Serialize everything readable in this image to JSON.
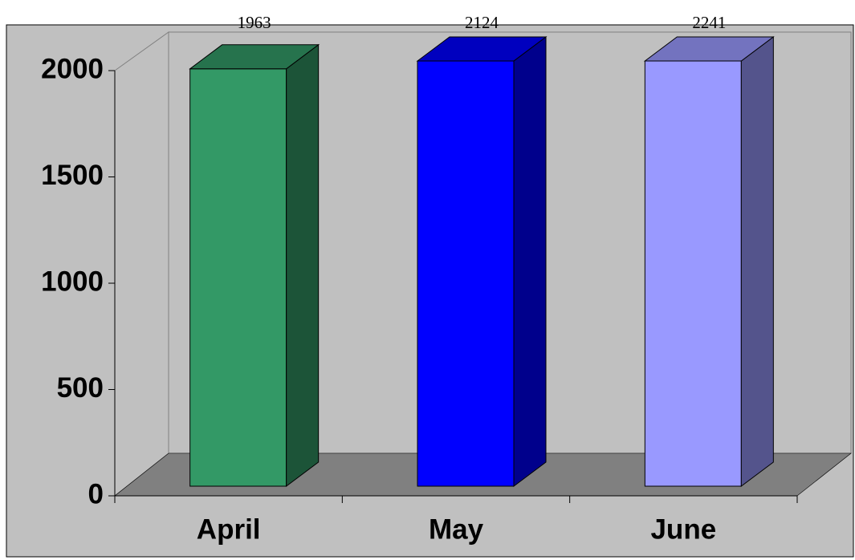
{
  "chart_data": {
    "type": "bar3d",
    "categories": [
      "April",
      "May",
      "June"
    ],
    "values": [
      1963,
      2124,
      2241
    ],
    "colors": [
      "#339966",
      "#0000ff",
      "#9999ff"
    ],
    "ylim": [
      0,
      2000
    ],
    "yticks": [
      0,
      500,
      1000,
      1500,
      2000
    ],
    "grid": false
  }
}
